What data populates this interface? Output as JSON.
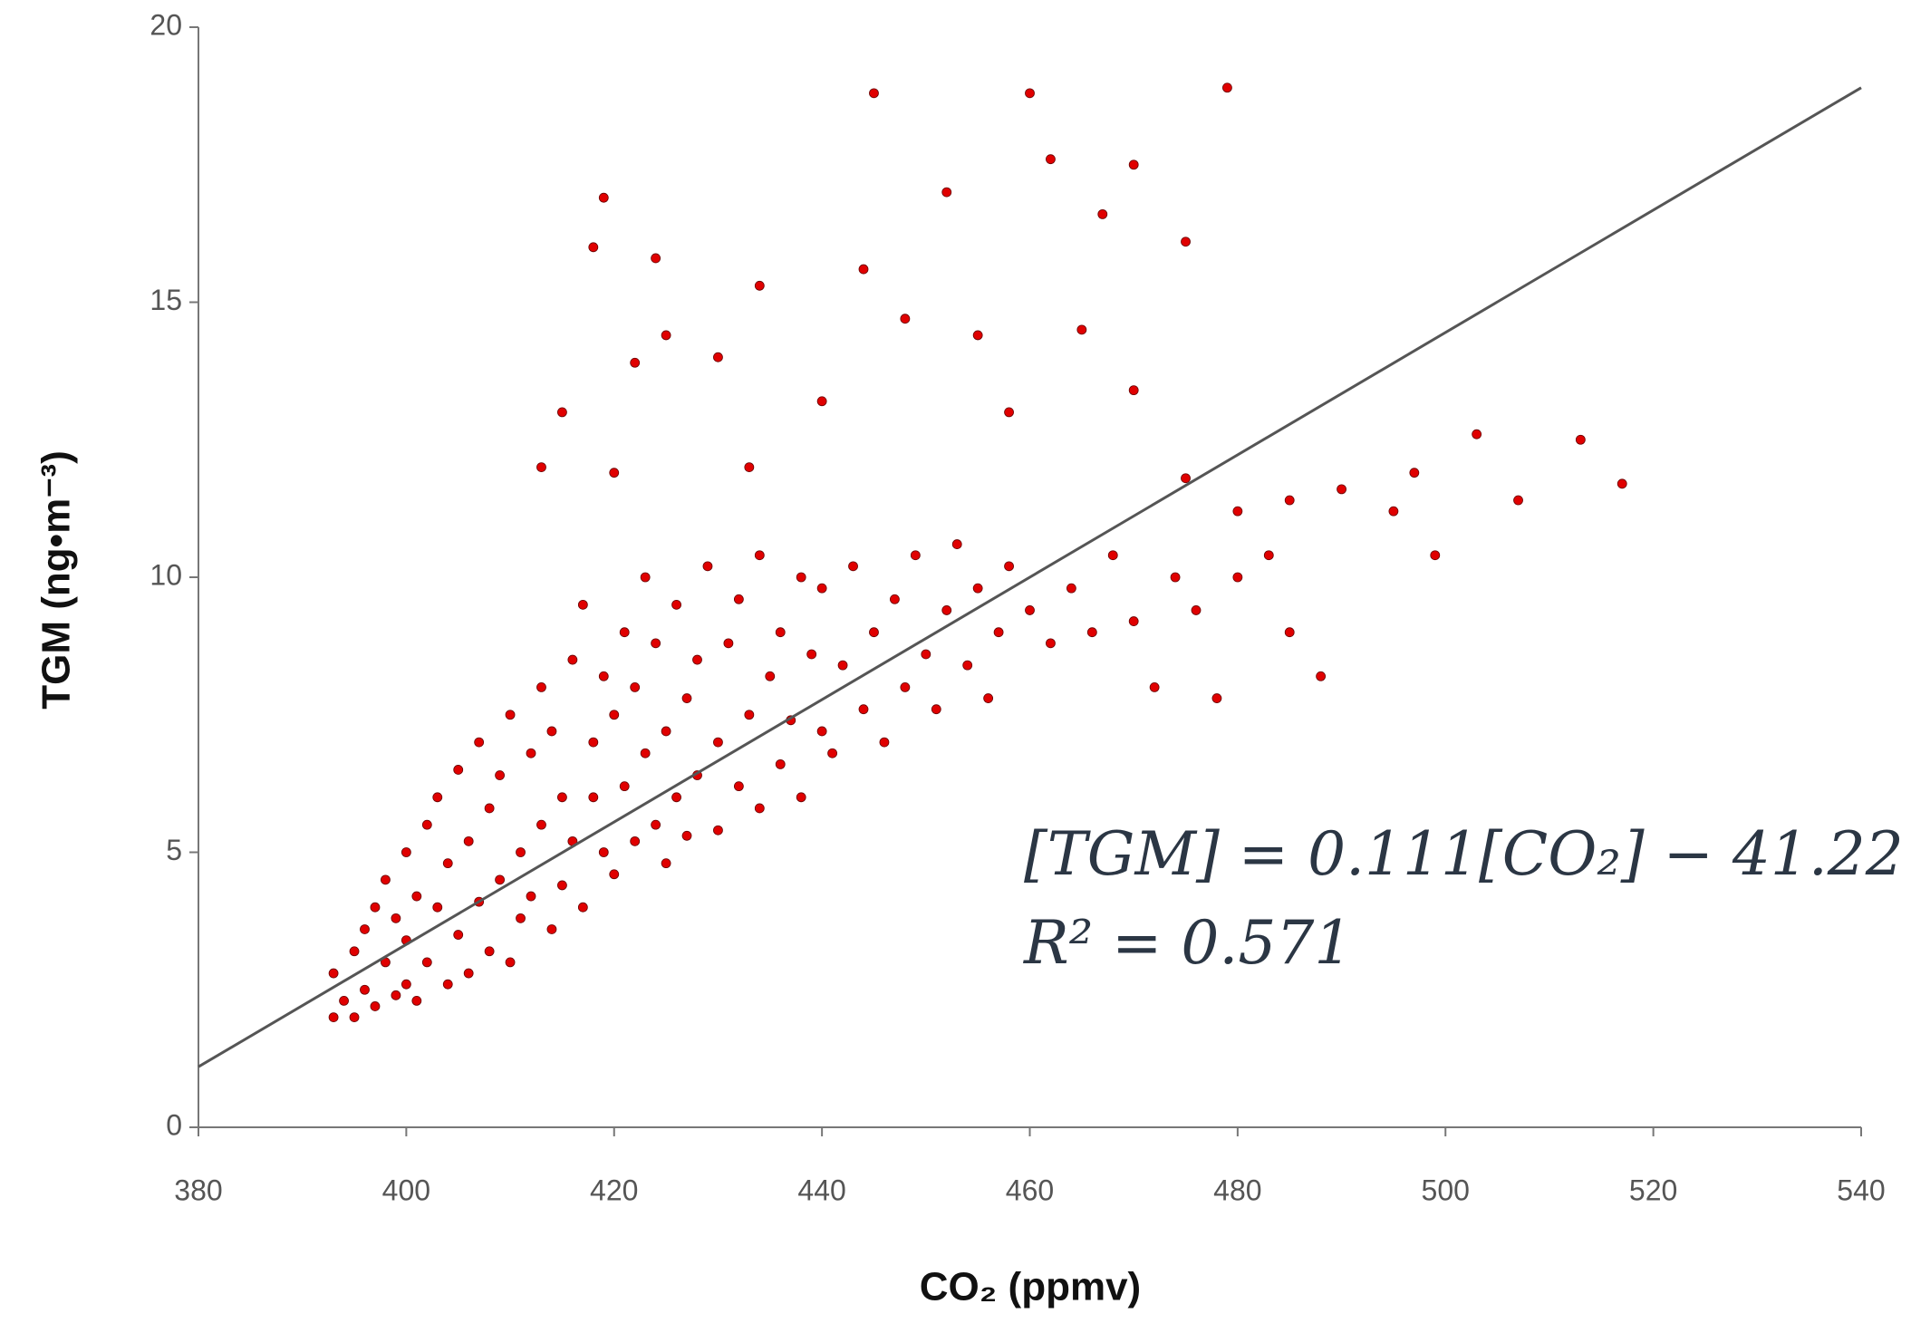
{
  "chart_data": {
    "type": "scatter",
    "xlabel": "CO₂ (ppmv)",
    "ylabel": "TGM (ng•m⁻³)",
    "xlim": [
      380,
      540
    ],
    "xticks": [
      380,
      400,
      420,
      440,
      460,
      480,
      500,
      520,
      540
    ],
    "ylim": [
      0,
      20
    ],
    "yticks": [
      0,
      5,
      10,
      15,
      20
    ],
    "annotations": [
      "[TGM] = 0.111[CO₂] − 41.22",
      "R² = 0.571"
    ],
    "series": [
      {
        "color": "#e00000",
        "x": [
          393,
          393,
          394,
          395,
          395,
          396,
          396,
          397,
          397,
          398,
          398,
          399,
          399,
          400,
          400,
          400,
          401,
          401,
          402,
          402,
          403,
          403,
          404,
          404,
          405,
          405,
          406,
          406,
          407,
          407,
          408,
          408,
          409,
          409,
          410,
          410,
          411,
          411,
          412,
          412,
          413,
          413,
          414,
          414,
          415,
          415,
          416,
          416,
          417,
          417,
          418,
          418,
          419,
          419,
          420,
          420,
          421,
          421,
          422,
          422,
          423,
          423,
          424,
          424,
          425,
          425,
          426,
          426,
          427,
          427,
          428,
          428,
          429,
          430,
          430,
          431,
          432,
          432,
          433,
          434,
          434,
          435,
          436,
          436,
          437,
          438,
          438,
          439,
          440,
          440,
          441,
          442,
          443,
          444,
          445,
          446,
          447,
          448,
          449,
          450,
          451,
          452,
          453,
          454,
          455,
          456,
          457,
          458,
          460,
          462,
          464,
          466,
          468,
          470,
          472,
          474,
          476,
          478,
          480,
          483,
          485,
          488,
          490,
          495,
          499,
          503,
          507,
          513,
          517,
          418,
          419,
          424,
          434,
          445,
          460,
          479,
          462,
          470,
          452,
          467,
          475,
          444,
          425,
          422,
          415,
          430,
          448,
          455,
          465,
          433,
          440,
          458,
          470,
          413,
          420,
          480,
          485,
          475,
          497
        ],
        "values": [
          2.0,
          2.8,
          2.3,
          3.2,
          2.0,
          3.6,
          2.5,
          4.0,
          2.2,
          3.0,
          4.5,
          2.4,
          3.8,
          5.0,
          2.6,
          3.4,
          4.2,
          2.3,
          5.5,
          3.0,
          4.0,
          6.0,
          2.6,
          4.8,
          3.5,
          6.5,
          5.2,
          2.8,
          4.1,
          7.0,
          3.2,
          5.8,
          6.4,
          4.5,
          3.0,
          7.5,
          5.0,
          3.8,
          6.8,
          4.2,
          8.0,
          5.5,
          3.6,
          7.2,
          6.0,
          4.4,
          8.5,
          5.2,
          9.5,
          4.0,
          7.0,
          6.0,
          5.0,
          8.2,
          4.6,
          7.5,
          9.0,
          6.2,
          5.2,
          8.0,
          10.0,
          6.8,
          5.5,
          8.8,
          7.2,
          4.8,
          9.5,
          6.0,
          7.8,
          5.3,
          8.5,
          6.4,
          10.2,
          7.0,
          5.4,
          8.8,
          6.2,
          9.6,
          7.5,
          5.8,
          10.4,
          8.2,
          6.6,
          9.0,
          7.4,
          10.0,
          6.0,
          8.6,
          7.2,
          9.8,
          6.8,
          8.4,
          10.2,
          7.6,
          9.0,
          7.0,
          9.6,
          8.0,
          10.4,
          8.6,
          7.6,
          9.4,
          10.6,
          8.4,
          9.8,
          7.8,
          9.0,
          10.2,
          9.4,
          8.8,
          9.8,
          9.0,
          10.4,
          9.2,
          8.0,
          10.0,
          9.4,
          7.8,
          10.0,
          10.4,
          9.0,
          8.2,
          11.6,
          11.2,
          10.4,
          12.6,
          11.4,
          12.5,
          11.7,
          16.0,
          16.9,
          15.8,
          15.3,
          18.8,
          18.8,
          18.9,
          17.6,
          17.5,
          17.0,
          16.6,
          16.1,
          15.6,
          14.4,
          13.9,
          13.0,
          14.0,
          14.7,
          14.4,
          14.5,
          12.0,
          13.2,
          13.0,
          13.4,
          12.0,
          11.9,
          11.2,
          11.4,
          11.8,
          11.9
        ]
      }
    ],
    "fit_line": {
      "color": "#555555",
      "x": [
        380,
        540
      ],
      "values": [
        1.1,
        18.9
      ]
    }
  }
}
